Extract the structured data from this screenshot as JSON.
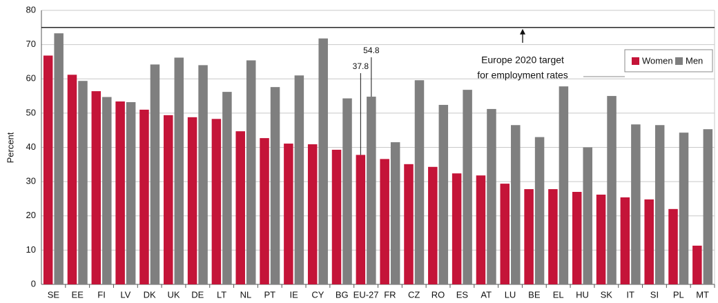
{
  "chart_data": {
    "type": "bar",
    "ylabel": "Percent",
    "categories": [
      "SE",
      "EE",
      "FI",
      "LV",
      "DK",
      "UK",
      "DE",
      "LT",
      "NL",
      "PT",
      "IE",
      "CY",
      "BG",
      "EU-27",
      "FR",
      "CZ",
      "RO",
      "ES",
      "AT",
      "LU",
      "BE",
      "EL",
      "HU",
      "SK",
      "IT",
      "SI",
      "PL",
      "MT"
    ],
    "series": [
      {
        "name": "Women",
        "color": "#c41438",
        "values": [
          66.8,
          61.2,
          56.4,
          53.4,
          51.0,
          49.4,
          48.8,
          48.3,
          44.7,
          42.7,
          41.1,
          40.9,
          39.3,
          37.8,
          36.6,
          35.1,
          34.3,
          32.4,
          31.8,
          29.4,
          27.8,
          27.8,
          27.0,
          26.2,
          25.4,
          24.8,
          22.0,
          11.3
        ],
        "value_labels": [
          null,
          null,
          null,
          null,
          null,
          null,
          null,
          null,
          null,
          null,
          null,
          null,
          null,
          "37.8",
          null,
          null,
          null,
          null,
          null,
          null,
          null,
          null,
          null,
          null,
          null,
          null,
          null,
          null
        ]
      },
      {
        "name": "Men",
        "color": "#7f7f7f",
        "values": [
          73.3,
          59.4,
          54.7,
          53.2,
          64.2,
          66.2,
          64.0,
          56.2,
          65.4,
          57.6,
          61.0,
          71.8,
          54.3,
          54.8,
          41.5,
          59.6,
          52.4,
          56.8,
          51.2,
          46.5,
          43.0,
          57.8,
          40.0,
          55.0,
          46.7,
          46.5,
          44.3,
          45.3
        ],
        "value_labels": [
          null,
          null,
          null,
          null,
          null,
          null,
          null,
          null,
          null,
          null,
          null,
          null,
          null,
          "54.8",
          null,
          null,
          null,
          null,
          null,
          null,
          null,
          null,
          null,
          null,
          null,
          null,
          null,
          null
        ]
      }
    ],
    "target": {
      "value": 75,
      "label": [
        "Europe 2020 target",
        "for employment rates"
      ]
    },
    "ylim": [
      0,
      80
    ],
    "yticks": [
      0,
      10,
      20,
      30,
      40,
      50,
      60,
      70,
      80
    ],
    "grid": true,
    "legend": "upper right"
  }
}
